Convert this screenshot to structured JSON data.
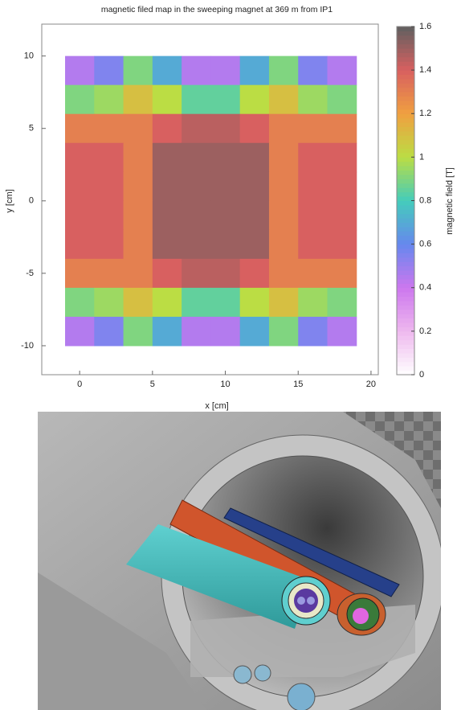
{
  "chart_data": {
    "type": "heatmap",
    "title": "magnetic filed map in the sweeping magnet at 369 m from IP1",
    "x_label": "x [cm]",
    "y_label": "y [cm]",
    "colorbar_label": "magnetic field [T]",
    "xlim": [
      -2.6,
      20.5
    ],
    "ylim": [
      -12,
      12.2
    ],
    "xticks": [
      0,
      5,
      10,
      15,
      20
    ],
    "yticks": [
      -10,
      -5,
      0,
      5,
      10
    ],
    "zlim": [
      0,
      1.6
    ],
    "zticks": [
      0,
      0.2,
      0.4,
      0.6,
      0.8,
      1,
      1.2,
      1.4,
      1.6
    ],
    "colorscale": [
      "#ffffff",
      "#eeb8ee",
      "#cc77ee",
      "#6688ee",
      "#44ccbb",
      "#bbdd44",
      "#f0a040",
      "#d86060",
      "#606060"
    ],
    "x_edges": [
      -1,
      1,
      3,
      5,
      7,
      9,
      11,
      13,
      15,
      17,
      19
    ],
    "y_edges": [
      10,
      8,
      6,
      4,
      2,
      0,
      -2,
      -4,
      -6,
      -8,
      -10
    ],
    "z": [
      [
        0.45,
        0.55,
        0.9,
        0.7,
        0.45,
        0.45,
        0.7,
        0.9,
        0.55,
        0.45
      ],
      [
        0.9,
        0.95,
        1.1,
        1.0,
        0.85,
        0.85,
        1.0,
        1.1,
        0.95,
        0.9
      ],
      [
        1.3,
        1.3,
        1.3,
        1.4,
        1.45,
        1.45,
        1.4,
        1.3,
        1.3,
        1.3
      ],
      [
        1.4,
        1.4,
        1.3,
        1.5,
        1.5,
        1.5,
        1.5,
        1.3,
        1.4,
        1.4
      ],
      [
        1.4,
        1.4,
        1.3,
        1.5,
        1.5,
        1.5,
        1.5,
        1.3,
        1.4,
        1.4
      ],
      [
        1.4,
        1.4,
        1.3,
        1.5,
        1.5,
        1.5,
        1.5,
        1.3,
        1.4,
        1.4
      ],
      [
        1.4,
        1.4,
        1.3,
        1.5,
        1.5,
        1.5,
        1.5,
        1.3,
        1.4,
        1.4
      ],
      [
        1.3,
        1.3,
        1.3,
        1.4,
        1.45,
        1.45,
        1.4,
        1.3,
        1.3,
        1.3
      ],
      [
        0.9,
        0.95,
        1.1,
        1.0,
        0.85,
        0.85,
        1.0,
        1.1,
        0.95,
        0.9
      ],
      [
        0.45,
        0.55,
        0.9,
        0.7,
        0.45,
        0.45,
        0.7,
        0.9,
        0.55,
        0.45
      ]
    ]
  }
}
